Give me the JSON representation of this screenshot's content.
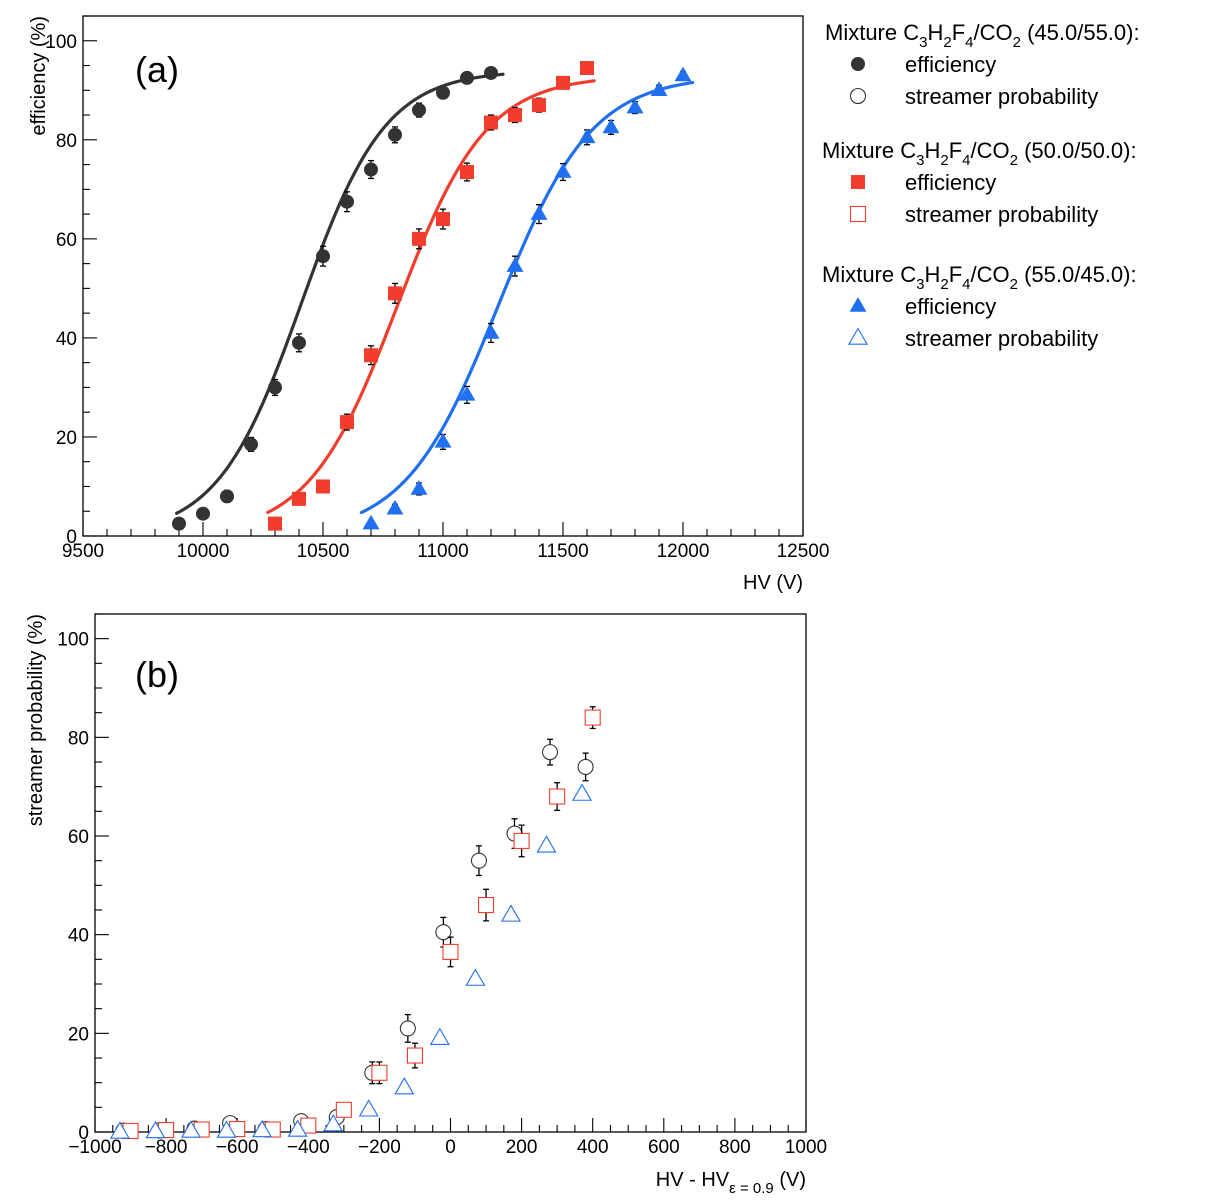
{
  "colors": {
    "mix1": "#333333",
    "mix2": "#f23d2d",
    "mix3": "#1f6ff0",
    "errbar": "#000000"
  },
  "legend": {
    "entry_efficiency": "efficiency",
    "entry_streamer": "streamer probability",
    "groups": [
      {
        "prefix": "Mixture C",
        "s1": "3",
        "m1": "H",
        "s2": "2",
        "m2": "F",
        "s3": "4",
        "m3": "/CO",
        "s4": "2",
        "suffix": " (45.0/55.0):",
        "color_key": "mix1",
        "marker": "circle"
      },
      {
        "prefix": "Mixture C",
        "s1": "3",
        "m1": "H",
        "s2": "2",
        "m2": "F",
        "s3": "4",
        "m3": "/CO",
        "s4": "2",
        "suffix": " (50.0/50.0):",
        "color_key": "mix2",
        "marker": "square"
      },
      {
        "prefix": "Mixture C",
        "s1": "3",
        "m1": "H",
        "s2": "2",
        "m2": "F",
        "s3": "4",
        "m3": "/CO",
        "s4": "2",
        "suffix": " (55.0/45.0):",
        "color_key": "mix3",
        "marker": "triangle"
      }
    ]
  },
  "chart_data": [
    {
      "type": "scatter",
      "panel_label": "(a)",
      "xlabel": "HV (V)",
      "ylabel": "efficiency (%)",
      "xlim": [
        9500,
        12500
      ],
      "ylim": [
        0,
        105
      ],
      "xticks": [
        9500,
        10000,
        10500,
        11000,
        11500,
        12000,
        12500
      ],
      "yticks": [
        0,
        20,
        40,
        60,
        80,
        100
      ],
      "series": [
        {
          "name": "efficiency 45.0/55.0",
          "color_key": "mix1",
          "marker": "circle",
          "filled": true,
          "x": [
            9900,
            10000,
            10100,
            10200,
            10300,
            10400,
            10500,
            10600,
            10700,
            10800,
            10900,
            11000,
            11100,
            11200
          ],
          "y": [
            2.5,
            4.5,
            8,
            18.5,
            30,
            39,
            56.5,
            67.5,
            74,
            81,
            86,
            89.5,
            92.5,
            93.5
          ],
          "err": [
            0.7,
            0.9,
            1.2,
            1.4,
            1.6,
            1.8,
            2.0,
            2.0,
            1.8,
            1.6,
            1.4,
            1.2,
            1.0,
            0.9
          ],
          "fit": {
            "x0": 10410,
            "w": 175,
            "pmax": 94,
            "xmin": 9890,
            "xmax": 11250
          }
        },
        {
          "name": "efficiency 50.0/50.0",
          "color_key": "mix2",
          "marker": "square",
          "filled": true,
          "x": [
            10300,
            10400,
            10500,
            10600,
            10700,
            10800,
            10900,
            11000,
            11100,
            11200,
            11300,
            11400,
            11500,
            11600
          ],
          "y": [
            2.5,
            7.5,
            10,
            23,
            36.5,
            49,
            60,
            64,
            73.5,
            83.5,
            85,
            87,
            91.5,
            94.5
          ],
          "err": [
            0.7,
            1.0,
            1.2,
            1.6,
            1.9,
            2.0,
            2.0,
            2.0,
            1.8,
            1.5,
            1.5,
            1.4,
            1.1,
            0.8
          ],
          "fit": {
            "x0": 10810,
            "w": 185,
            "pmax": 93,
            "xmin": 10270,
            "xmax": 11630
          }
        },
        {
          "name": "efficiency 55.0/45.0",
          "color_key": "mix3",
          "marker": "triangle",
          "filled": true,
          "x": [
            10700,
            10800,
            10900,
            11000,
            11100,
            11200,
            11300,
            11400,
            11500,
            11600,
            11700,
            11800,
            11900,
            12000
          ],
          "y": [
            2.5,
            5.5,
            9.5,
            19,
            28.5,
            41,
            54.5,
            65,
            73.5,
            80.5,
            82.5,
            86.5,
            90,
            93
          ],
          "err": [
            0.6,
            0.9,
            1.2,
            1.5,
            1.7,
            1.9,
            2.0,
            1.9,
            1.7,
            1.5,
            1.4,
            1.2,
            1.0,
            0.8
          ],
          "fit": {
            "x0": 11230,
            "w": 195,
            "pmax": 93,
            "xmin": 10660,
            "xmax": 12040
          }
        }
      ]
    },
    {
      "type": "scatter",
      "panel_label": "(b)",
      "xlabel": "HV - HV",
      "xlabel_sub": "ε = 0.9",
      "xlabel_suffix": " (V)",
      "ylabel": "streamer probability (%)",
      "xlim": [
        -1000,
        1000
      ],
      "ylim": [
        0,
        105
      ],
      "xticks": [
        -1000,
        -800,
        -600,
        -400,
        -200,
        0,
        200,
        400,
        600,
        800,
        1000
      ],
      "yticks": [
        0,
        20,
        40,
        60,
        80,
        100
      ],
      "series": [
        {
          "name": "streamer probability 45.0/55.0",
          "color_key": "mix1",
          "marker": "circle",
          "filled": false,
          "x": [
            -920,
            -820,
            -720,
            -620,
            -520,
            -420,
            -320,
            -220,
            -120,
            -20,
            80,
            180,
            280,
            380
          ],
          "y": [
            0.3,
            0.3,
            0.7,
            1.8,
            0.6,
            2.2,
            3.0,
            12.0,
            21.0,
            40.5,
            55.0,
            60.5,
            77.0,
            74.0
          ],
          "err": [
            0.3,
            0.3,
            0.5,
            0.9,
            0.5,
            1.0,
            1.2,
            2.2,
            2.8,
            3.0,
            3.0,
            3.0,
            2.6,
            2.8
          ]
        },
        {
          "name": "streamer probability 50.0/50.0",
          "color_key": "mix2",
          "marker": "square",
          "filled": false,
          "x": [
            -900,
            -800,
            -700,
            -600,
            -500,
            -400,
            -300,
            -200,
            -100,
            0,
            100,
            200,
            300,
            400
          ],
          "y": [
            0.2,
            0.4,
            0.5,
            0.6,
            0.5,
            1.3,
            4.5,
            12.0,
            15.5,
            36.5,
            46.0,
            59.0,
            68.0,
            84.0
          ],
          "err": [
            0.3,
            0.3,
            0.4,
            0.4,
            0.4,
            0.8,
            1.4,
            2.2,
            2.5,
            3.0,
            3.2,
            3.2,
            2.8,
            2.2
          ]
        },
        {
          "name": "streamer probability 55.0/45.0",
          "color_key": "mix3",
          "marker": "triangle",
          "filled": false,
          "x": [
            -930,
            -830,
            -730,
            -630,
            -530,
            -430,
            -330,
            -230,
            -130,
            -30,
            70,
            170,
            270,
            370
          ],
          "y": [
            0.0,
            0.1,
            0.2,
            0.2,
            0.3,
            0.4,
            1.5,
            4.5,
            9.0,
            19.0,
            31.0,
            44.0,
            58.0,
            68.5
          ],
          "err": []
        }
      ]
    }
  ]
}
